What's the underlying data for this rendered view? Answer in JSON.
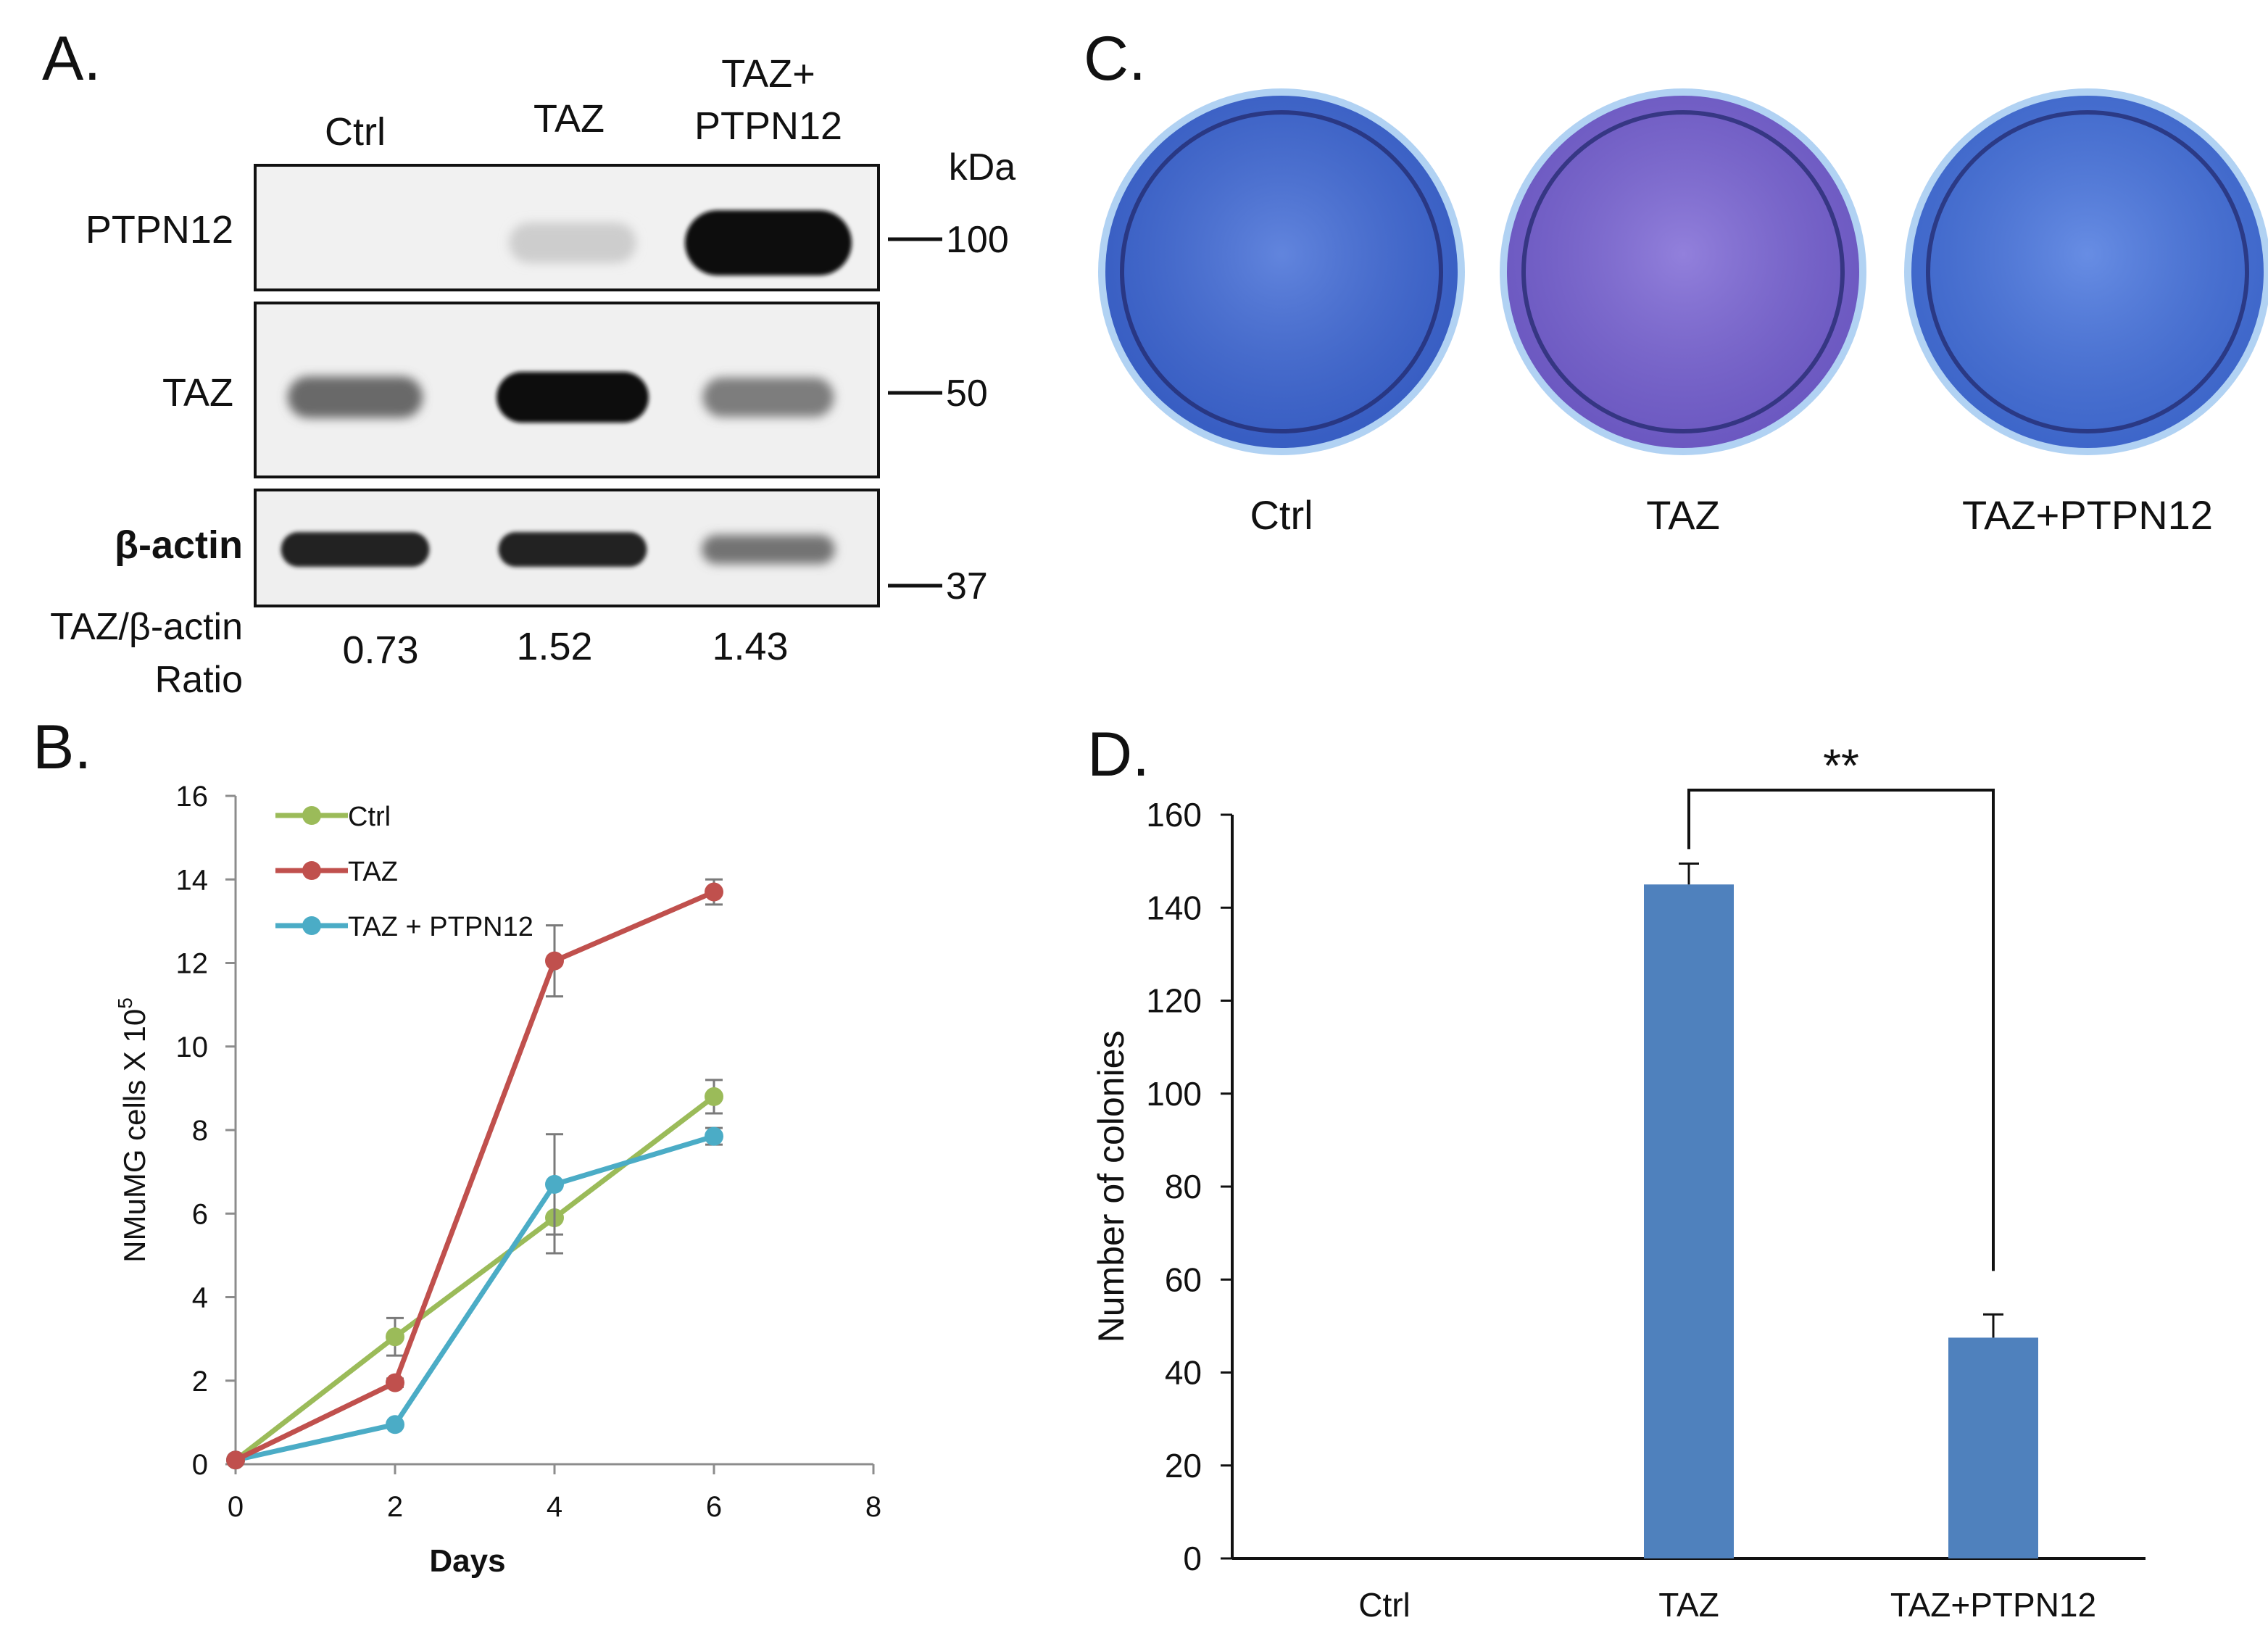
{
  "panels": {
    "A": {
      "label": "A.",
      "lanes": [
        "Ctrl",
        "TAZ",
        "TAZ+\nPTPN12"
      ],
      "kda_label": "kDa",
      "blots": [
        {
          "name": "PTPN12",
          "marker": "100"
        },
        {
          "name": "TAZ",
          "marker": "50"
        },
        {
          "name": "β-actin",
          "marker": "37"
        }
      ],
      "ratio_label_line1": "TAZ/β-actin",
      "ratio_label_line2": "Ratio",
      "ratios": [
        "0.73",
        "1.52",
        "1.43"
      ],
      "band_intensity": {
        "PTPN12": [
          0,
          0.05,
          1.0
        ],
        "TAZ": [
          0.55,
          1.0,
          0.45
        ],
        "beta_actin": [
          0.9,
          0.9,
          0.5
        ]
      }
    },
    "B": {
      "label": "B."
    },
    "C": {
      "label": "C.",
      "plates": [
        "Ctrl",
        "TAZ",
        "TAZ+PTPN12"
      ],
      "plate_colors": [
        "#3f6ad6",
        "#7a64d4",
        "#4674de"
      ]
    },
    "D": {
      "label": "D."
    }
  },
  "chart_data": [
    {
      "type": "line",
      "panel": "B",
      "x": [
        0,
        2,
        4,
        6
      ],
      "xlim": [
        0,
        8
      ],
      "xticks": [
        0,
        2,
        4,
        6,
        8
      ],
      "ylim": [
        0,
        16
      ],
      "yticks": [
        0,
        2,
        4,
        6,
        8,
        10,
        12,
        14,
        16
      ],
      "xlabel": "Days",
      "ylabel": "NMuMG cells X 10",
      "ylabel_sup": "5",
      "legend_position": "top-left",
      "grid": false,
      "series": [
        {
          "name": "Ctrl",
          "color": "#9bbb59",
          "values": [
            0.1,
            3.05,
            5.9,
            8.8
          ],
          "errors": [
            0,
            0.45,
            0.85,
            0.4
          ]
        },
        {
          "name": "TAZ",
          "color": "#c0504d",
          "values": [
            0.1,
            1.95,
            12.05,
            13.7
          ],
          "errors": [
            0,
            0.1,
            0.85,
            0.3
          ]
        },
        {
          "name": "TAZ + PTPN12",
          "color": "#4bacc6",
          "values": [
            0.1,
            0.95,
            6.7,
            7.85
          ],
          "errors": [
            0,
            0.05,
            1.2,
            0.2
          ]
        }
      ]
    },
    {
      "type": "bar",
      "panel": "D",
      "categories": [
        "Ctrl",
        "TAZ",
        "TAZ+PTPN12"
      ],
      "values": [
        0,
        145,
        47.5
      ],
      "errors": [
        0,
        4.5,
        5
      ],
      "ylim": [
        0,
        160
      ],
      "yticks": [
        0,
        20,
        40,
        60,
        80,
        100,
        120,
        140,
        160
      ],
      "ylabel": "Number of colonies",
      "xlabel": "",
      "bar_color": "#4f81bd",
      "grid": false,
      "significance": {
        "between": [
          1,
          2
        ],
        "label": "**"
      }
    }
  ]
}
